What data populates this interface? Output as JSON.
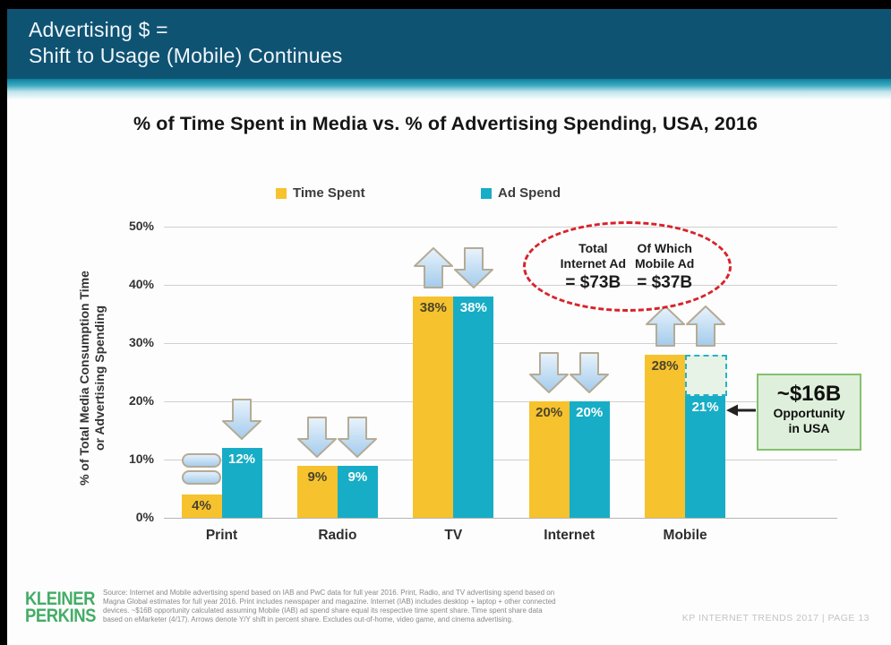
{
  "header": {
    "line1": "Advertising $ =",
    "line2": "Shift to Usage (Mobile) Continues"
  },
  "chart_data": {
    "type": "bar",
    "title": "% of Time Spent in Media vs. % of Advertising Spending, USA, 2016",
    "categories": [
      "Print",
      "Radio",
      "TV",
      "Internet",
      "Mobile"
    ],
    "series": [
      {
        "name": "Time Spent",
        "color": "#f6c22d",
        "values": [
          4,
          9,
          38,
          20,
          28
        ],
        "value_labels": [
          "4%",
          "9%",
          "38%",
          "20%",
          "28%"
        ],
        "trend": [
          "flat",
          "down",
          "up",
          "down",
          "up"
        ]
      },
      {
        "name": "Ad Spend",
        "color": "#17adc6",
        "values": [
          12,
          9,
          38,
          20,
          21
        ],
        "value_labels": [
          "12%",
          "9%",
          "38%",
          "20%",
          "21%"
        ],
        "trend": [
          "down",
          "down",
          "down",
          "down",
          "up"
        ]
      }
    ],
    "ylabel_line1": "% of Total Media Consumption Time",
    "ylabel_line2": "or Advertising Spending",
    "yticks": [
      "0%",
      "10%",
      "20%",
      "30%",
      "40%",
      "50%"
    ],
    "ylim": [
      0,
      50
    ],
    "grid": true,
    "legend_position": "top",
    "mobile_ghost": {
      "from": 21,
      "to": 28
    }
  },
  "annotations": {
    "ellipse": {
      "col1_line1": "Total",
      "col1_line2": "Internet Ad",
      "col1_value": "= $73B",
      "col2_line1": "Of Which",
      "col2_line2": "Mobile Ad",
      "col2_value": "= $37B"
    },
    "opportunity": {
      "amount": "~$16B",
      "line2": "Opportunity",
      "line3": "in USA"
    }
  },
  "footer": {
    "logo_line1": "KLEINER",
    "logo_line2": "PERKINS",
    "source_lines": [
      "Source: Internet and Mobile advertising spend based on IAB and PwC data for full year 2016. Print, Radio, and TV advertising spend based on",
      "Magna Global estimates for full year 2016. Print includes newspaper and magazine. Internet (IAB) includes desktop + laptop + other connected",
      "devices. ~$16B opportunity calculated assuming Mobile (IAB) ad spend share equal its respective time spent share. Time spent share data",
      "based on eMarketer (4/17). Arrows denote Y/Y shift in percent share. Excludes out-of-home, video game, and cinema advertising."
    ],
    "page_label": "KP INTERNET TRENDS 2017   |   PAGE 13"
  }
}
